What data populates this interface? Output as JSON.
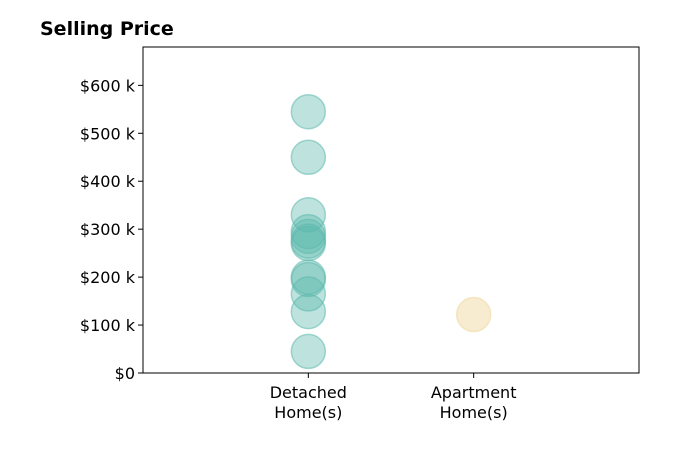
{
  "chart_data": {
    "type": "scatter",
    "title": "Selling Price",
    "xlabel": "",
    "ylabel": "",
    "categories": [
      [
        "Detached",
        "Home(s)"
      ],
      [
        "Apartment",
        "Home(s)"
      ]
    ],
    "y_ticks": [
      {
        "value": 0,
        "label": "$0"
      },
      {
        "value": 100000,
        "label": "$100 k"
      },
      {
        "value": 200000,
        "label": "$200 k"
      },
      {
        "value": 300000,
        "label": "$300 k"
      },
      {
        "value": 400000,
        "label": "$400 k"
      },
      {
        "value": 500000,
        "label": "$500 k"
      },
      {
        "value": 600000,
        "label": "$600 k"
      }
    ],
    "ylim": [
      0,
      680000
    ],
    "xlim": [
      -1,
      2
    ],
    "grid": false,
    "series": [
      {
        "category_index": 0,
        "color": "#5cb8ad",
        "opacity": 0.4,
        "values": [
          545000,
          450000,
          330000,
          295000,
          285000,
          275000,
          270000,
          200000,
          195000,
          165000,
          128000,
          45000
        ]
      },
      {
        "category_index": 1,
        "color": "#f2dfb0",
        "opacity": 0.6,
        "values": [
          122000
        ]
      }
    ]
  }
}
